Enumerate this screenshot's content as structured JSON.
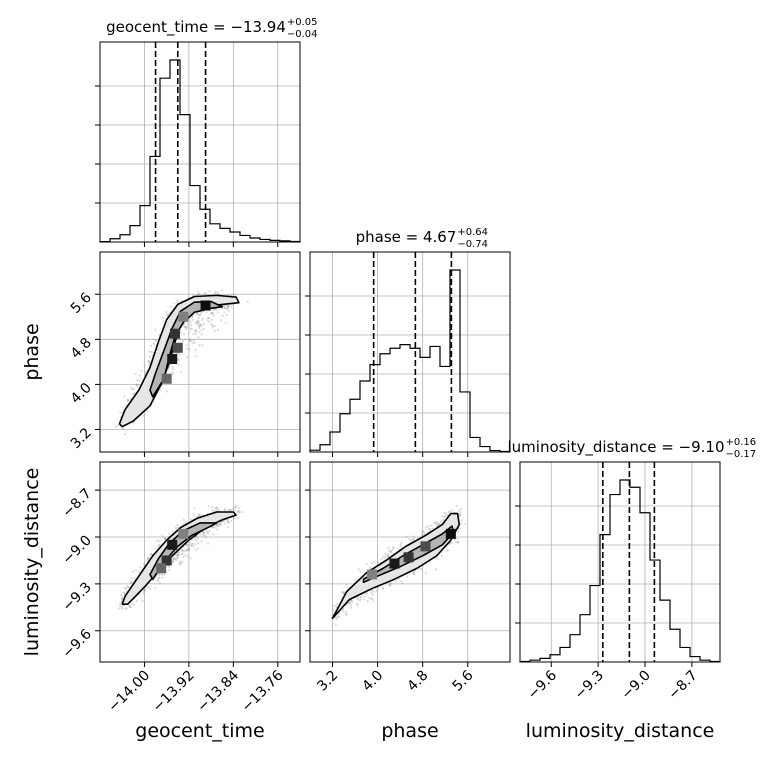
{
  "chart_data": {
    "type": "corner",
    "parameters": [
      "geocent_time",
      "phase",
      "luminosity_distance"
    ],
    "axis_labels": {
      "geocent_time": "geocent_time",
      "phase": "phase",
      "luminosity_distance": "luminosity_distance"
    },
    "ranges": {
      "geocent_time": [
        -14.08,
        -13.72
      ],
      "phase": [
        2.8,
        6.35
      ],
      "luminosity_distance": [
        -9.8,
        -8.52
      ]
    },
    "ticks": {
      "geocent_time": [
        -14.0,
        -13.92,
        -13.84,
        -13.76
      ],
      "phase": [
        3.2,
        4.0,
        4.8,
        5.6
      ],
      "luminosity_distance": [
        -9.6,
        -9.3,
        -9.0,
        -8.7
      ]
    },
    "tick_labels": {
      "geocent_time": [
        "−14.00",
        "−13.92",
        "−13.84",
        "−13.76"
      ],
      "phase": [
        "3.2",
        "4.0",
        "4.8",
        "5.6"
      ],
      "luminosity_distance": [
        "−9.6",
        "−9.3",
        "−9.0",
        "−8.7"
      ]
    },
    "titles": [
      {
        "param": "geocent_time",
        "main": "geocent_time = −13.94",
        "sup": "+0.05",
        "sub": "−0.04"
      },
      {
        "param": "phase",
        "main": "phase = 4.67",
        "sup": "+0.64",
        "sub": "−0.74"
      },
      {
        "param": "luminosity_distance",
        "main": "luminosity_distance = −9.10",
        "sup": "+0.16",
        "sub": "−0.17"
      }
    ],
    "quantiles": {
      "geocent_time": [
        -13.98,
        -13.94,
        -13.89
      ],
      "phase": [
        3.93,
        4.67,
        5.31
      ],
      "luminosity_distance": [
        -9.27,
        -9.1,
        -8.94
      ]
    },
    "histograms": {
      "geocent_time": {
        "edges": [
          -14.08,
          -14.062,
          -14.044,
          -14.026,
          -14.008,
          -13.99,
          -13.972,
          -13.954,
          -13.936,
          -13.918,
          -13.9,
          -13.882,
          -13.864,
          -13.846,
          -13.828,
          -13.81,
          -13.792,
          -13.774,
          -13.756,
          -13.738,
          -13.72
        ],
        "counts": [
          2,
          18,
          40,
          90,
          200,
          470,
          900,
          1000,
          700,
          310,
          180,
          100,
          75,
          55,
          36,
          22,
          14,
          9,
          6,
          3
        ]
      },
      "phase": {
        "edges": [
          2.8,
          2.9775,
          3.155,
          3.3325,
          3.51,
          3.6875,
          3.865,
          4.0425,
          4.22,
          4.3975,
          4.575,
          4.7525,
          4.93,
          5.1075,
          5.285,
          5.4625,
          5.64,
          5.8175,
          5.995,
          6.1725,
          6.35
        ],
        "counts": [
          10,
          40,
          110,
          210,
          290,
          390,
          480,
          540,
          570,
          590,
          570,
          520,
          580,
          470,
          1000,
          330,
          80,
          30,
          8,
          3
        ]
      },
      "luminosity_distance": {
        "edges": [
          -9.8,
          -9.736,
          -9.672,
          -9.608,
          -9.544,
          -9.48,
          -9.416,
          -9.352,
          -9.288,
          -9.224,
          -9.16,
          -9.096,
          -9.032,
          -8.968,
          -8.904,
          -8.84,
          -8.776,
          -8.712,
          -8.648,
          -8.584,
          -8.52
        ],
        "counts": [
          3,
          10,
          20,
          40,
          80,
          150,
          260,
          420,
          700,
          920,
          1000,
          960,
          820,
          560,
          340,
          180,
          80,
          30,
          10,
          3
        ]
      }
    },
    "contours_2d": [
      {
        "x": "geocent_time",
        "y": "phase",
        "levels": [
          {
            "level": "outer",
            "points": [
              [
                -14.04,
                3.25
              ],
              [
                -14.02,
                3.35
              ],
              [
                -13.99,
                3.62
              ],
              [
                -13.97,
                4.0
              ],
              [
                -13.955,
                4.4
              ],
              [
                -13.945,
                4.75
              ],
              [
                -13.935,
                5.05
              ],
              [
                -13.92,
                5.25
              ],
              [
                -13.89,
                5.38
              ],
              [
                -13.86,
                5.42
              ],
              [
                -13.83,
                5.45
              ],
              [
                -13.835,
                5.55
              ],
              [
                -13.87,
                5.58
              ],
              [
                -13.91,
                5.56
              ],
              [
                -13.94,
                5.42
              ],
              [
                -13.96,
                5.15
              ],
              [
                -13.975,
                4.75
              ],
              [
                -13.99,
                4.3
              ],
              [
                -14.01,
                3.9
              ],
              [
                -14.035,
                3.55
              ],
              [
                -14.045,
                3.3
              ]
            ]
          },
          {
            "level": "inner",
            "points": [
              [
                -13.985,
                3.78
              ],
              [
                -13.965,
                4.1
              ],
              [
                -13.955,
                4.5
              ],
              [
                -13.945,
                4.85
              ],
              [
                -13.93,
                5.1
              ],
              [
                -13.91,
                5.28
              ],
              [
                -13.88,
                5.35
              ],
              [
                -13.86,
                5.38
              ],
              [
                -13.88,
                5.47
              ],
              [
                -13.91,
                5.46
              ],
              [
                -13.935,
                5.3
              ],
              [
                -13.95,
                5.0
              ],
              [
                -13.965,
                4.6
              ],
              [
                -13.98,
                4.2
              ],
              [
                -13.99,
                3.9
              ]
            ]
          }
        ],
        "hot_bins": [
          [
            -13.95,
            4.45,
            0.9
          ],
          [
            -13.945,
            4.9,
            0.8
          ],
          [
            -13.93,
            5.2,
            0.5
          ],
          [
            -13.89,
            5.4,
            0.95
          ],
          [
            -13.96,
            4.1,
            0.6
          ],
          [
            -13.94,
            4.65,
            0.7
          ]
        ]
      },
      {
        "x": "geocent_time",
        "y": "luminosity_distance",
        "levels": [
          {
            "level": "outer",
            "points": [
              [
                -14.03,
                -9.43
              ],
              [
                -14.0,
                -9.32
              ],
              [
                -13.97,
                -9.2
              ],
              [
                -13.95,
                -9.12
              ],
              [
                -13.92,
                -9.02
              ],
              [
                -13.89,
                -8.94
              ],
              [
                -13.86,
                -8.89
              ],
              [
                -13.835,
                -8.86
              ],
              [
                -13.84,
                -8.84
              ],
              [
                -13.87,
                -8.84
              ],
              [
                -13.905,
                -8.88
              ],
              [
                -13.935,
                -8.94
              ],
              [
                -13.96,
                -9.02
              ],
              [
                -13.985,
                -9.12
              ],
              [
                -14.01,
                -9.25
              ],
              [
                -14.035,
                -9.38
              ],
              [
                -14.04,
                -9.43
              ]
            ]
          },
          {
            "level": "inner",
            "points": [
              [
                -13.985,
                -9.27
              ],
              [
                -13.965,
                -9.16
              ],
              [
                -13.94,
                -9.06
              ],
              [
                -13.915,
                -8.99
              ],
              [
                -13.88,
                -8.93
              ],
              [
                -13.87,
                -8.91
              ],
              [
                -13.9,
                -8.91
              ],
              [
                -13.93,
                -8.96
              ],
              [
                -13.955,
                -9.04
              ],
              [
                -13.975,
                -9.14
              ],
              [
                -13.99,
                -9.24
              ]
            ]
          }
        ],
        "hot_bins": [
          [
            -13.95,
            -9.05,
            0.9
          ],
          [
            -13.96,
            -9.15,
            0.8
          ],
          [
            -13.93,
            -8.98,
            0.5
          ],
          [
            -13.97,
            -9.2,
            0.6
          ]
        ]
      },
      {
        "x": "phase",
        "y": "luminosity_distance",
        "levels": [
          {
            "level": "outer",
            "points": [
              [
                3.2,
                -9.52
              ],
              [
                3.45,
                -9.35
              ],
              [
                3.8,
                -9.23
              ],
              [
                4.15,
                -9.15
              ],
              [
                4.5,
                -9.06
              ],
              [
                4.85,
                -8.99
              ],
              [
                5.15,
                -8.92
              ],
              [
                5.3,
                -8.85
              ],
              [
                5.42,
                -8.85
              ],
              [
                5.45,
                -8.92
              ],
              [
                5.3,
                -9.02
              ],
              [
                5.05,
                -9.12
              ],
              [
                4.7,
                -9.2
              ],
              [
                4.3,
                -9.27
              ],
              [
                3.9,
                -9.33
              ],
              [
                3.5,
                -9.4
              ],
              [
                3.25,
                -9.5
              ]
            ]
          },
          {
            "level": "inner",
            "points": [
              [
                3.75,
                -9.27
              ],
              [
                4.1,
                -9.2
              ],
              [
                4.45,
                -9.12
              ],
              [
                4.8,
                -9.05
              ],
              [
                5.15,
                -8.98
              ],
              [
                5.32,
                -8.93
              ],
              [
                5.35,
                -8.97
              ],
              [
                5.15,
                -9.05
              ],
              [
                4.8,
                -9.12
              ],
              [
                4.4,
                -9.19
              ],
              [
                4.0,
                -9.25
              ],
              [
                3.75,
                -9.29
              ]
            ]
          }
        ],
        "hot_bins": [
          [
            4.3,
            -9.17,
            0.9
          ],
          [
            4.55,
            -9.13,
            0.8
          ],
          [
            4.85,
            -9.06,
            0.7
          ],
          [
            5.3,
            -8.98,
            0.95
          ],
          [
            3.9,
            -9.24,
            0.5
          ]
        ]
      }
    ],
    "grid": true
  }
}
